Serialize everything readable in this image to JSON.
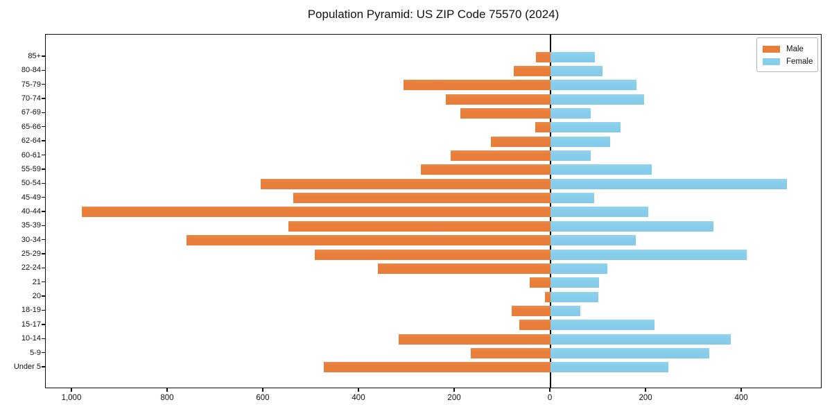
{
  "title": "Population Pyramid: US ZIP Code 75570 (2024)",
  "legend": {
    "male_label": "Male",
    "female_label": "Female"
  },
  "colors": {
    "male": "#e87e3a",
    "female": "#87ceeb",
    "axis": "#0d0d0d",
    "legend_border": "#b3b3b3"
  },
  "chart_data": {
    "type": "bar",
    "variant": "population-pyramid",
    "title": "Population Pyramid: US ZIP Code 75570 (2024)",
    "xlabel": "",
    "ylabel": "",
    "grid": false,
    "legend_position": "upper-right",
    "categories": [
      "85+",
      "80-84",
      "75-79",
      "70-74",
      "67-69",
      "65-66",
      "62-64",
      "60-61",
      "55-59",
      "50-54",
      "45-49",
      "40-44",
      "35-39",
      "30-34",
      "25-29",
      "22-24",
      "21",
      "20",
      "18-19",
      "15-17",
      "10-14",
      "5-9",
      "Under 5"
    ],
    "series": [
      {
        "name": "Male",
        "side": "left",
        "color": "#e87e3a",
        "values": [
          30,
          77,
          307,
          219,
          188,
          32,
          125,
          209,
          271,
          606,
          538,
          980,
          548,
          761,
          493,
          361,
          44,
          11,
          81,
          65,
          317,
          167,
          474
        ]
      },
      {
        "name": "Female",
        "side": "right",
        "color": "#87ceeb",
        "values": [
          93,
          108,
          180,
          195,
          84,
          146,
          124,
          84,
          212,
          494,
          91,
          204,
          341,
          178,
          410,
          119,
          101,
          100,
          62,
          217,
          376,
          332,
          246
        ]
      }
    ],
    "x_axis": {
      "xlim": [
        -1055,
        568
      ],
      "ticks": [
        -1000,
        -800,
        -600,
        -400,
        -200,
        0,
        200,
        400
      ],
      "tick_labels": [
        "1,000",
        "800",
        "600",
        "400",
        "200",
        "0",
        "200",
        "400"
      ]
    }
  }
}
